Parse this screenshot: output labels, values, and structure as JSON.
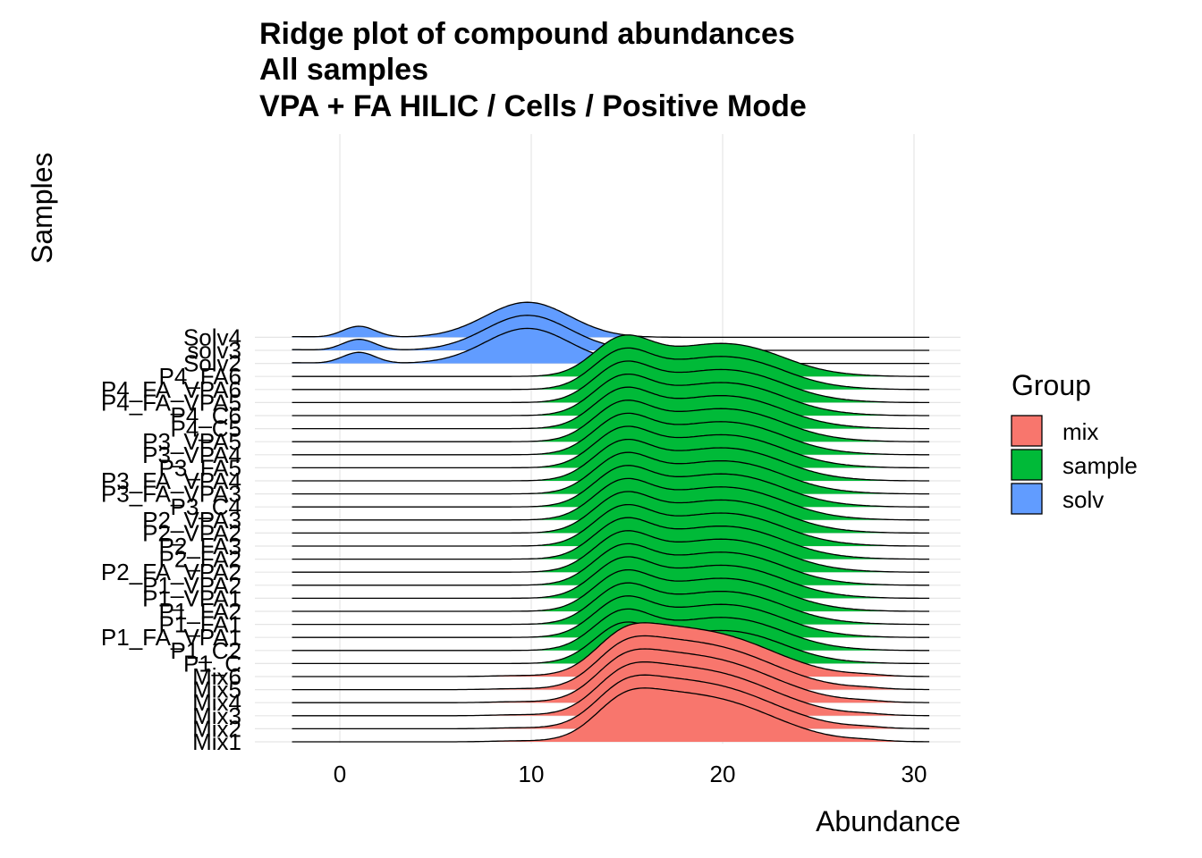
{
  "chart_data": {
    "type": "ridgeline",
    "title": [
      "Ridge plot of compound abundances",
      "All samples",
      "VPA + FA HILIC / Cells / Positive Mode"
    ],
    "xlabel": "Abundance",
    "ylabel": "Samples",
    "xlim": [
      -5,
      31
    ],
    "x_ticks": [
      0,
      10,
      20,
      30
    ],
    "data_range": [
      -2.5,
      30.8
    ],
    "ridge_scale": 10,
    "grid": true,
    "legend": {
      "title": "Group",
      "position": "right",
      "items": [
        {
          "label": "mix",
          "color": "#F8766D"
        },
        {
          "label": "sample",
          "color": "#00BA38"
        },
        {
          "label": "solv",
          "color": "#619CFF"
        }
      ]
    },
    "series": [
      {
        "name": "Mix1",
        "group": "mix",
        "components": [
          [
            14.6,
            1.4,
            0.05
          ],
          [
            16.0,
            2.0,
            0.055
          ],
          [
            19.5,
            3.2,
            0.11
          ],
          [
            27.5,
            1.0,
            0.003
          ],
          [
            9.0,
            1.2,
            0.002
          ]
        ]
      },
      {
        "name": "Mix2",
        "group": "mix",
        "components": [
          [
            14.6,
            1.4,
            0.05
          ],
          [
            16.0,
            2.0,
            0.055
          ],
          [
            19.5,
            3.2,
            0.11
          ],
          [
            27.5,
            1.0,
            0.003
          ],
          [
            9.0,
            1.2,
            0.002
          ]
        ]
      },
      {
        "name": "Mix3",
        "group": "mix",
        "components": [
          [
            14.6,
            1.4,
            0.05
          ],
          [
            16.0,
            2.0,
            0.055
          ],
          [
            19.5,
            3.2,
            0.11
          ],
          [
            27.5,
            1.0,
            0.003
          ],
          [
            9.0,
            1.2,
            0.002
          ]
        ]
      },
      {
        "name": "Mix4",
        "group": "mix",
        "components": [
          [
            14.6,
            1.4,
            0.05
          ],
          [
            16.0,
            2.0,
            0.055
          ],
          [
            19.5,
            3.2,
            0.11
          ],
          [
            27.5,
            1.0,
            0.003
          ],
          [
            9.0,
            1.2,
            0.002
          ]
        ]
      },
      {
        "name": "Mix5",
        "group": "mix",
        "components": [
          [
            14.6,
            1.4,
            0.05
          ],
          [
            16.0,
            2.0,
            0.055
          ],
          [
            19.5,
            3.2,
            0.11
          ],
          [
            27.5,
            1.0,
            0.003
          ],
          [
            9.0,
            1.2,
            0.002
          ]
        ]
      },
      {
        "name": "Mix6",
        "group": "mix",
        "components": [
          [
            14.6,
            1.4,
            0.05
          ],
          [
            16.0,
            2.0,
            0.055
          ],
          [
            19.5,
            3.2,
            0.11
          ],
          [
            27.5,
            1.0,
            0.003
          ],
          [
            9.0,
            1.2,
            0.002
          ]
        ]
      },
      {
        "name": "P1_C",
        "group": "sample",
        "components": [
          [
            14.7,
            1.5,
            0.09
          ],
          [
            18.8,
            2.6,
            0.07
          ],
          [
            22.0,
            2.2,
            0.04
          ],
          [
            26.5,
            1.5,
            0.002
          ]
        ]
      },
      {
        "name": "P1_C2",
        "group": "sample",
        "components": [
          [
            14.7,
            1.5,
            0.09
          ],
          [
            18.8,
            2.6,
            0.07
          ],
          [
            22.0,
            2.2,
            0.04
          ],
          [
            26.5,
            1.5,
            0.002
          ]
        ]
      },
      {
        "name": "P1_FA_VPA1",
        "group": "sample",
        "components": [
          [
            14.7,
            1.5,
            0.09
          ],
          [
            18.8,
            2.6,
            0.07
          ],
          [
            22.0,
            2.2,
            0.04
          ],
          [
            26.5,
            1.5,
            0.002
          ]
        ]
      },
      {
        "name": "P1_FA1",
        "group": "sample",
        "components": [
          [
            14.7,
            1.5,
            0.09
          ],
          [
            18.8,
            2.6,
            0.07
          ],
          [
            22.0,
            2.2,
            0.04
          ],
          [
            26.5,
            1.5,
            0.002
          ]
        ]
      },
      {
        "name": "P1_FA2",
        "group": "sample",
        "components": [
          [
            14.7,
            1.5,
            0.09
          ],
          [
            18.8,
            2.6,
            0.07
          ],
          [
            22.0,
            2.2,
            0.04
          ],
          [
            26.5,
            1.5,
            0.002
          ]
        ]
      },
      {
        "name": "P1_VPA1",
        "group": "sample",
        "components": [
          [
            14.7,
            1.5,
            0.09
          ],
          [
            18.8,
            2.6,
            0.07
          ],
          [
            22.0,
            2.2,
            0.04
          ],
          [
            26.5,
            1.5,
            0.002
          ]
        ]
      },
      {
        "name": "P1_VPA2",
        "group": "sample",
        "components": [
          [
            14.7,
            1.5,
            0.09
          ],
          [
            18.8,
            2.6,
            0.07
          ],
          [
            22.0,
            2.2,
            0.04
          ],
          [
            26.5,
            1.5,
            0.002
          ]
        ]
      },
      {
        "name": "P2_FA_VPA2",
        "group": "sample",
        "components": [
          [
            14.7,
            1.5,
            0.09
          ],
          [
            18.8,
            2.6,
            0.07
          ],
          [
            22.0,
            2.2,
            0.04
          ],
          [
            26.5,
            1.5,
            0.002
          ]
        ]
      },
      {
        "name": "P2_FA2",
        "group": "sample",
        "components": [
          [
            14.7,
            1.5,
            0.09
          ],
          [
            18.8,
            2.6,
            0.07
          ],
          [
            22.0,
            2.2,
            0.04
          ],
          [
            26.5,
            1.5,
            0.002
          ]
        ]
      },
      {
        "name": "P2_FA3",
        "group": "sample",
        "components": [
          [
            14.7,
            1.5,
            0.09
          ],
          [
            18.8,
            2.6,
            0.07
          ],
          [
            22.0,
            2.2,
            0.04
          ],
          [
            26.5,
            1.5,
            0.002
          ]
        ]
      },
      {
        "name": "P2_VPA2",
        "group": "sample",
        "components": [
          [
            14.7,
            1.5,
            0.09
          ],
          [
            18.8,
            2.6,
            0.07
          ],
          [
            22.0,
            2.2,
            0.04
          ],
          [
            26.5,
            1.5,
            0.002
          ]
        ]
      },
      {
        "name": "P2_VPA3",
        "group": "sample",
        "components": [
          [
            14.7,
            1.5,
            0.09
          ],
          [
            18.8,
            2.6,
            0.07
          ],
          [
            22.0,
            2.2,
            0.04
          ],
          [
            26.5,
            1.5,
            0.002
          ]
        ]
      },
      {
        "name": "P3_C4",
        "group": "sample",
        "components": [
          [
            14.7,
            1.5,
            0.09
          ],
          [
            18.8,
            2.6,
            0.07
          ],
          [
            22.0,
            2.2,
            0.04
          ],
          [
            26.5,
            1.5,
            0.002
          ]
        ]
      },
      {
        "name": "P3_FA_VPA3",
        "group": "sample",
        "components": [
          [
            14.7,
            1.5,
            0.09
          ],
          [
            18.8,
            2.6,
            0.07
          ],
          [
            22.0,
            2.2,
            0.04
          ],
          [
            26.5,
            1.5,
            0.002
          ]
        ]
      },
      {
        "name": "P3_FA_VPA4",
        "group": "sample",
        "components": [
          [
            14.7,
            1.5,
            0.09
          ],
          [
            18.8,
            2.6,
            0.07
          ],
          [
            22.0,
            2.2,
            0.04
          ],
          [
            26.5,
            1.5,
            0.002
          ]
        ]
      },
      {
        "name": "P3_FA5",
        "group": "sample",
        "components": [
          [
            14.7,
            1.5,
            0.09
          ],
          [
            18.8,
            2.6,
            0.07
          ],
          [
            22.0,
            2.2,
            0.04
          ],
          [
            26.5,
            1.5,
            0.002
          ]
        ]
      },
      {
        "name": "P3_VPA4",
        "group": "sample",
        "components": [
          [
            14.7,
            1.5,
            0.09
          ],
          [
            18.8,
            2.6,
            0.07
          ],
          [
            22.0,
            2.2,
            0.04
          ],
          [
            26.5,
            1.5,
            0.002
          ]
        ]
      },
      {
        "name": "P3_VPA5",
        "group": "sample",
        "components": [
          [
            14.7,
            1.5,
            0.09
          ],
          [
            18.8,
            2.6,
            0.07
          ],
          [
            22.0,
            2.2,
            0.04
          ],
          [
            26.5,
            1.5,
            0.002
          ]
        ]
      },
      {
        "name": "P4_C5",
        "group": "sample",
        "components": [
          [
            14.7,
            1.5,
            0.09
          ],
          [
            18.8,
            2.6,
            0.07
          ],
          [
            22.0,
            2.2,
            0.04
          ],
          [
            26.5,
            1.5,
            0.002
          ]
        ]
      },
      {
        "name": "P4_C6",
        "group": "sample",
        "components": [
          [
            14.7,
            1.5,
            0.09
          ],
          [
            18.8,
            2.6,
            0.07
          ],
          [
            22.0,
            2.2,
            0.04
          ],
          [
            26.5,
            1.5,
            0.002
          ]
        ]
      },
      {
        "name": "P4_FA_VPA5",
        "group": "sample",
        "components": [
          [
            14.7,
            1.5,
            0.09
          ],
          [
            18.8,
            2.6,
            0.07
          ],
          [
            22.0,
            2.2,
            0.04
          ],
          [
            26.5,
            1.5,
            0.002
          ]
        ]
      },
      {
        "name": "P4_FA_VPA6",
        "group": "sample",
        "components": [
          [
            14.7,
            1.5,
            0.09
          ],
          [
            18.8,
            2.6,
            0.07
          ],
          [
            22.0,
            2.2,
            0.04
          ],
          [
            26.5,
            1.5,
            0.002
          ]
        ]
      },
      {
        "name": "P4_FA6",
        "group": "sample",
        "components": [
          [
            14.7,
            1.5,
            0.09
          ],
          [
            18.8,
            2.6,
            0.07
          ],
          [
            22.0,
            2.2,
            0.04
          ],
          [
            26.5,
            1.5,
            0.002
          ]
        ]
      },
      {
        "name": "Solv2",
        "group": "solv",
        "components": [
          [
            -2.5,
            1.0,
            0.002
          ],
          [
            1.0,
            0.85,
            0.03
          ],
          [
            9.8,
            2.2,
            0.095
          ]
        ]
      },
      {
        "name": "solv3",
        "group": "solv",
        "components": [
          [
            -2.5,
            1.0,
            0.002
          ],
          [
            1.0,
            0.85,
            0.03
          ],
          [
            9.8,
            2.2,
            0.095
          ]
        ]
      },
      {
        "name": "Solv4",
        "group": "solv",
        "components": [
          [
            -2.5,
            1.0,
            0.002
          ],
          [
            1.0,
            0.85,
            0.03
          ],
          [
            9.8,
            2.2,
            0.095
          ]
        ]
      }
    ]
  }
}
